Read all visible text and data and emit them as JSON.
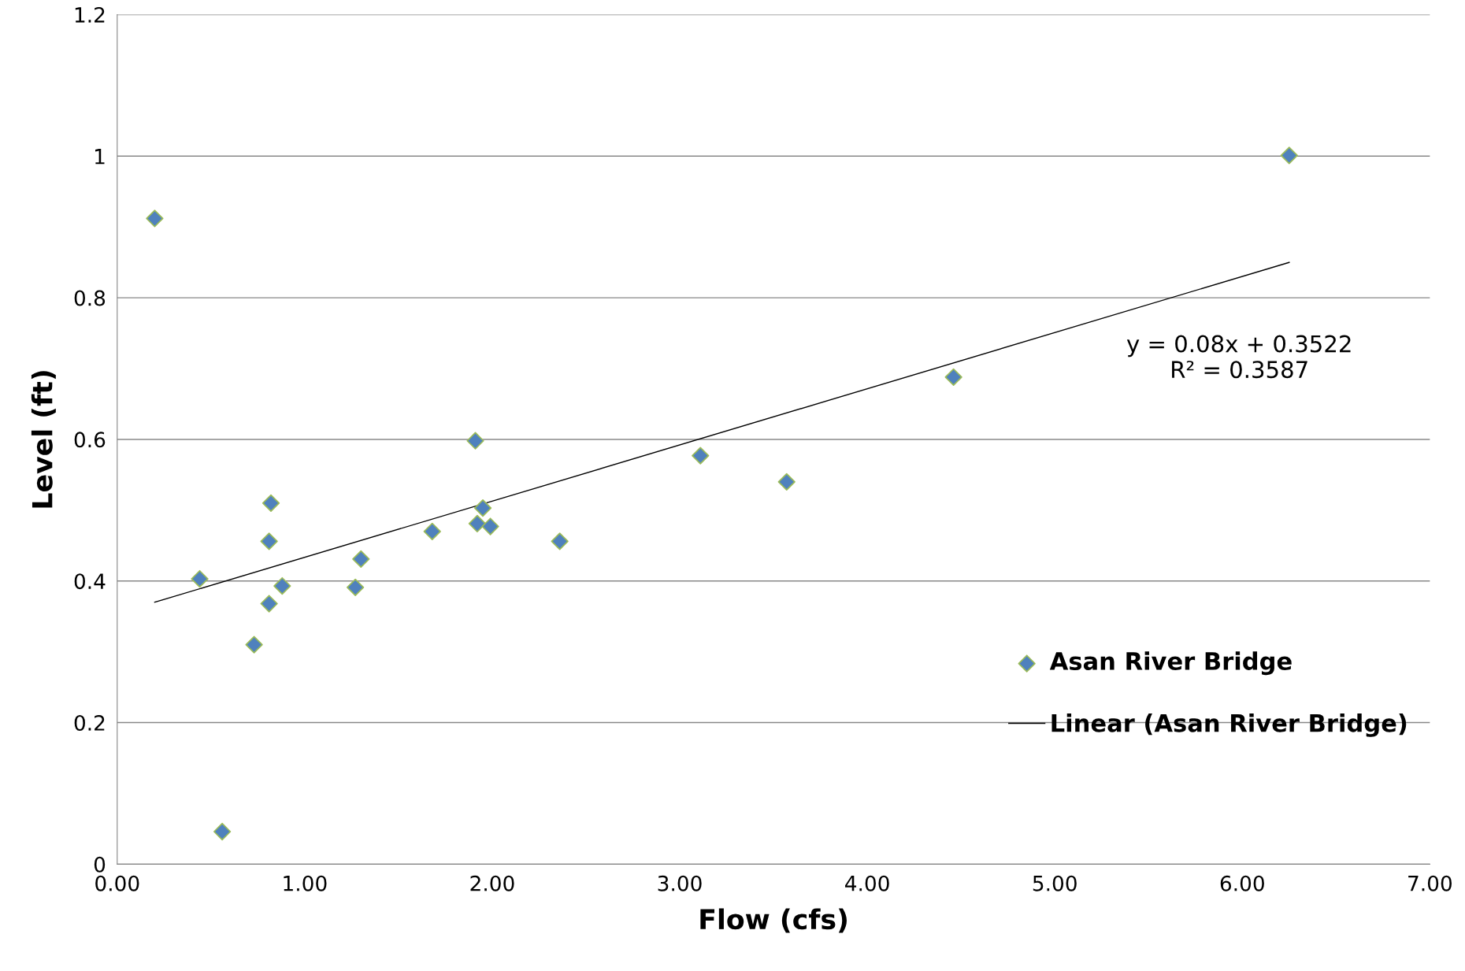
{
  "chart_data": {
    "type": "scatter",
    "xlabel": "Flow (cfs)",
    "ylabel": "Level (ft)",
    "xlim": [
      0,
      7
    ],
    "ylim": [
      0,
      1.2
    ],
    "xticks": [
      {
        "value": 0,
        "label": "0.00"
      },
      {
        "value": 1,
        "label": "1.00"
      },
      {
        "value": 2,
        "label": "2.00"
      },
      {
        "value": 3,
        "label": "3.00"
      },
      {
        "value": 4,
        "label": "4.00"
      },
      {
        "value": 5,
        "label": "5.00"
      },
      {
        "value": 6,
        "label": "6.00"
      },
      {
        "value": 7,
        "label": "7.00"
      }
    ],
    "yticks": [
      0,
      0.2,
      0.4,
      0.6,
      0.8,
      1,
      1.2
    ],
    "grid": "y",
    "legend": "right",
    "annotations": [
      "y = 0.08x + 0.3522\nR² = 0.3587"
    ],
    "series": [
      {
        "name": "Asan River Bridge",
        "marker": "diamond",
        "color": "#4f81bd",
        "x": [
          0.2,
          0.44,
          0.56,
          0.73,
          0.81,
          0.81,
          0.82,
          0.88,
          1.27,
          1.3,
          1.68,
          1.91,
          1.92,
          1.95,
          1.99,
          2.36,
          3.11,
          3.57,
          4.46,
          6.25
        ],
        "values": [
          0.912,
          0.403,
          0.046,
          0.31,
          0.368,
          0.456,
          0.51,
          0.393,
          0.391,
          0.431,
          0.47,
          0.598,
          0.481,
          0.503,
          0.477,
          0.456,
          0.577,
          0.54,
          0.688,
          1.001
        ]
      },
      {
        "name": "Linear (Asan River Bridge)",
        "type": "line",
        "color": "#000000",
        "x": [
          0.2,
          6.25
        ],
        "values": [
          0.37,
          0.85
        ],
        "marker": "none"
      }
    ]
  }
}
